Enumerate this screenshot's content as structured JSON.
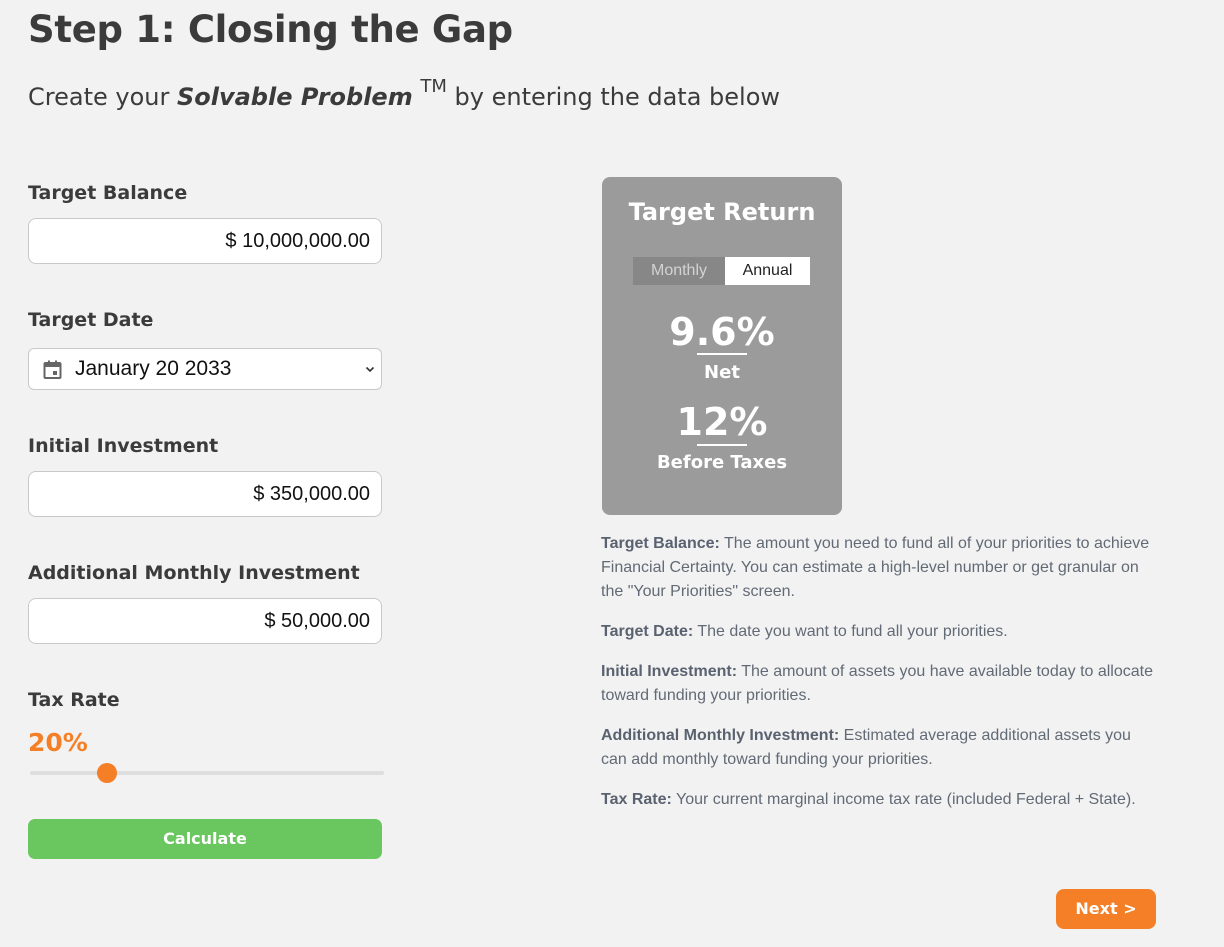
{
  "header": {
    "title": "Step 1: Closing the Gap",
    "subtitle_prefix": "Create your ",
    "subtitle_emphasis": "Solvable Problem",
    "subtitle_trademark": "TM",
    "subtitle_suffix": " by entering the data below"
  },
  "form": {
    "target_balance": {
      "label": "Target Balance",
      "value": "$ 10,000,000.00"
    },
    "target_date": {
      "label": "Target Date",
      "value": "January 20 2033",
      "icon": "calendar-icon"
    },
    "initial_investment": {
      "label": "Initial Investment",
      "value": "$ 350,000.00"
    },
    "monthly_investment": {
      "label": "Additional Monthly Investment",
      "value": "$ 50,000.00"
    },
    "tax_rate": {
      "label": "Tax Rate",
      "value": "20%",
      "slider_fraction": 0.2
    },
    "calculate_label": "Calculate"
  },
  "target_return": {
    "title": "Target Return",
    "toggle": {
      "monthly": "Monthly",
      "annual": "Annual",
      "selected": "Annual"
    },
    "net_value": "9.6%",
    "net_label": "Net",
    "gross_value": "12%",
    "gross_label": "Before Taxes"
  },
  "descriptions": [
    {
      "term": "Target Balance:",
      "text": " The amount you need to fund all of your priorities to achieve Financial Certainty. You can estimate a high-level number or get granular on the \"Your Priorities\" screen."
    },
    {
      "term": "Target Date:",
      "text": " The date you want to fund all your priorities."
    },
    {
      "term": "Initial Investment:",
      "text": " The amount of assets you have available today to allocate toward funding your priorities."
    },
    {
      "term": "Additional Monthly Investment:",
      "text": " Estimated average additional assets you can add monthly toward funding your priorities."
    },
    {
      "term": "Tax Rate:",
      "text": " Your current marginal income tax rate (included Federal + State)."
    }
  ],
  "next_label": "Next >",
  "colors": {
    "accent": "#f47f26",
    "calculate": "#6ac65e",
    "card": "#9b9b9b",
    "background": "#f2f2f2"
  }
}
